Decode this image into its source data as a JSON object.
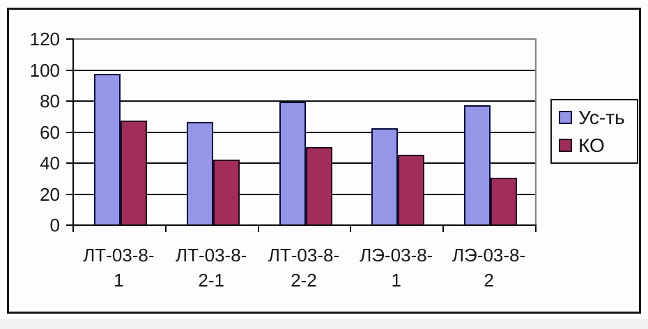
{
  "chart_data": {
    "type": "bar",
    "title": "",
    "xlabel": "",
    "ylabel": "",
    "categories": [
      {
        "line1": "ЛТ-03-8-",
        "line2": "1"
      },
      {
        "line1": "ЛТ-03-8-",
        "line2": "2-1"
      },
      {
        "line1": "ЛТ-03-8-",
        "line2": "2-2"
      },
      {
        "line1": "ЛЭ-03-8-",
        "line2": "1"
      },
      {
        "line1": "ЛЭ-03-8-",
        "line2": "2"
      }
    ],
    "series": [
      {
        "name": "Ус-ть",
        "values": [
          97,
          66,
          79,
          62,
          77
        ],
        "fill": "#9696E8",
        "border": "#0A0A3C"
      },
      {
        "name": "КО",
        "values": [
          67,
          42,
          50,
          45,
          30
        ],
        "fill": "#A02D5A",
        "border": "#23091B"
      }
    ],
    "ylim": [
      0,
      120
    ],
    "yticks": [
      0,
      20,
      40,
      60,
      80,
      100,
      120
    ],
    "grid": "horizontal-black",
    "plot_border_color": "#828282",
    "legend_position": "right-box"
  }
}
